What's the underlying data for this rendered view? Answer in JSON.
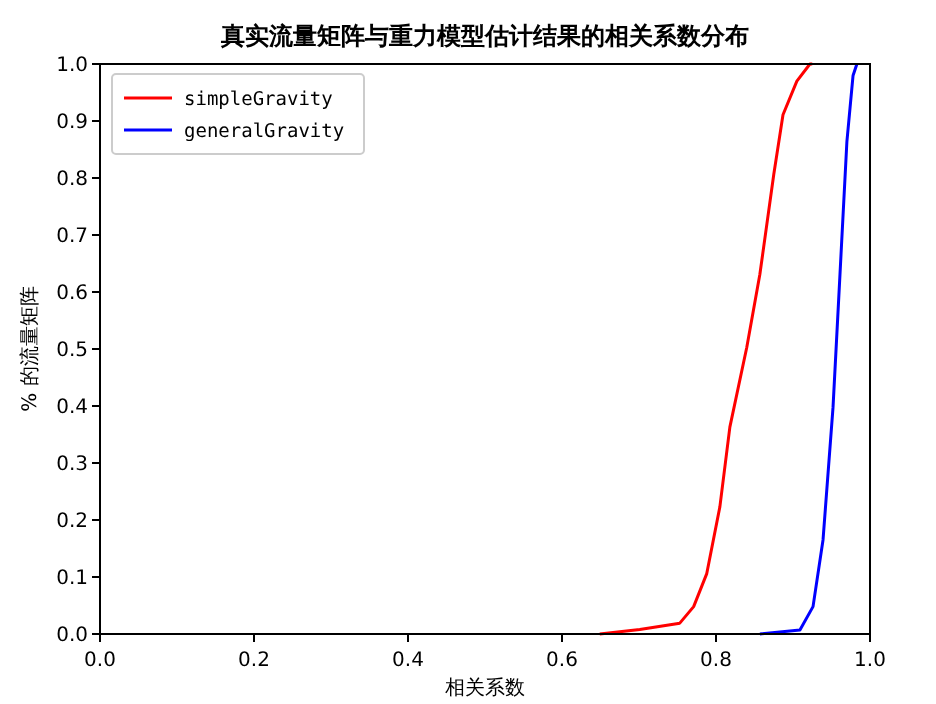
{
  "chart_data": {
    "type": "line",
    "title": "真实流量矩阵与重力模型估计结果的相关系数分布",
    "xlabel": "相关系数",
    "ylabel": "% 的流量矩阵",
    "series": [
      {
        "name": "simpleGravity",
        "color": "#ff0000",
        "x": [
          0.649,
          0.701,
          0.753,
          0.771,
          0.788,
          0.805,
          0.818,
          0.84,
          0.857,
          0.875,
          0.887,
          0.905,
          0.922,
          0.925
        ],
        "values": [
          0,
          0.008,
          0.019,
          0.048,
          0.106,
          0.223,
          0.363,
          0.503,
          0.631,
          0.806,
          0.911,
          0.97,
          1.0,
          1.0
        ]
      },
      {
        "name": "generalGravity",
        "color": "#0000ff",
        "x": [
          0.857,
          0.909,
          0.926,
          0.939,
          0.952,
          0.961,
          0.97,
          0.978,
          0.983
        ],
        "values": [
          0,
          0.007,
          0.048,
          0.165,
          0.398,
          0.631,
          0.864,
          0.98,
          1.0
        ]
      }
    ],
    "xlim": [
      0,
      1
    ],
    "ylim": [
      0,
      1
    ],
    "xticks": [
      {
        "value": 0,
        "label": "0.0"
      },
      0.2,
      0.4,
      0.6,
      0.8,
      {
        "value": 1,
        "label": "1.0"
      }
    ],
    "yticks": [
      {
        "value": 0,
        "label": "0.0"
      },
      0.1,
      0.2,
      0.3,
      0.4,
      0.5,
      0.6,
      0.7,
      0.8,
      0.9,
      {
        "value": 1,
        "label": "1.0"
      }
    ],
    "legend": "top left",
    "grid": false,
    "marker": "none",
    "line_style": "solid"
  }
}
